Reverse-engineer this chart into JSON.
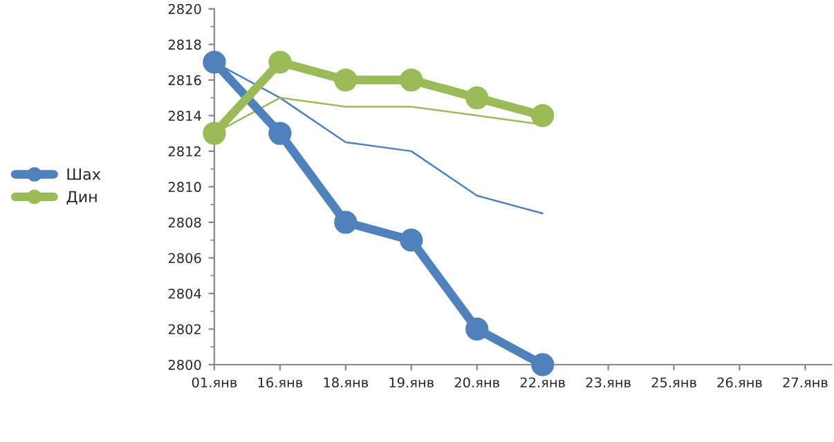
{
  "chart_data": {
    "type": "line",
    "categories": [
      "01.янв",
      "16.янв",
      "18.янв",
      "19.янв",
      "20.янв",
      "22.янв",
      "23.янв",
      "25.янв",
      "26.янв",
      "27.янв"
    ],
    "series": [
      {
        "name": "Шах",
        "color": "#4f81bd",
        "values": [
          2817,
          2813,
          2808,
          2807,
          2802,
          2800,
          null,
          null,
          null,
          null
        ]
      },
      {
        "name": "Дин",
        "color": "#9bbb59",
        "values": [
          2813,
          2817,
          2816,
          2816,
          2815,
          2814,
          null,
          null,
          null,
          null
        ]
      },
      {
        "color": "#4f81bd",
        "marker": "none",
        "values": [
          2817,
          2815,
          2812.5,
          2812,
          2809.5,
          2808.5,
          null,
          null,
          null,
          null
        ]
      },
      {
        "color": "#9bbb59",
        "marker": "none",
        "values": [
          2813,
          2815,
          2814.5,
          2814.5,
          2814,
          2813.5,
          null,
          null,
          null,
          null
        ]
      }
    ],
    "ylim": [
      2800,
      2820
    ],
    "yticks": [
      2800,
      2802,
      2804,
      2806,
      2808,
      2810,
      2812,
      2814,
      2816,
      2818,
      2820
    ],
    "marker": "circle",
    "grid": false,
    "legend": "left"
  }
}
